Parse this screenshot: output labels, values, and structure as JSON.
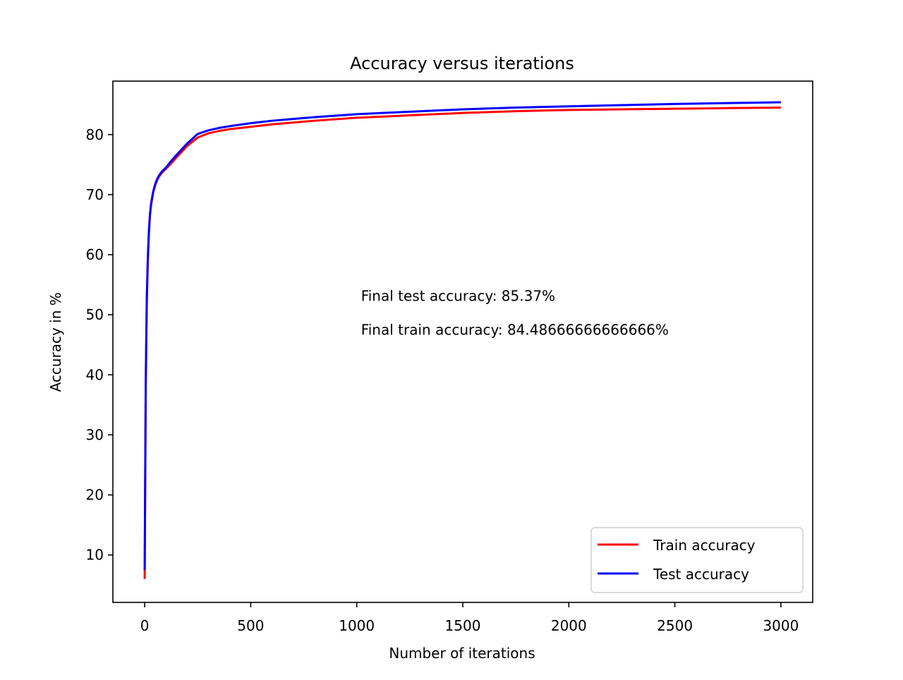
{
  "chart_data": {
    "type": "line",
    "title": "Accuracy versus iterations",
    "xlabel": "Number of iterations",
    "ylabel": "Accuracy in %",
    "xlim": [
      -150,
      3150
    ],
    "ylim": [
      2.1,
      88.9
    ],
    "x_ticks": [
      0,
      500,
      1000,
      1500,
      2000,
      2500,
      3000
    ],
    "y_ticks": [
      10,
      20,
      30,
      40,
      50,
      60,
      70,
      80
    ],
    "grid": false,
    "legend_position": "lower-right",
    "annotations": [
      {
        "text": "Final test accuracy: 85.37%",
        "x": 1020,
        "y": 52.3
      },
      {
        "text": "Final train accuracy: 84.48666666666666%",
        "x": 1020,
        "y": 46.7
      }
    ],
    "series": [
      {
        "name": "Train accuracy",
        "color": "#ff0000",
        "x": [
          0,
          5,
          10,
          15,
          20,
          25,
          30,
          40,
          50,
          60,
          70,
          80,
          100,
          125,
          150,
          200,
          250,
          300,
          350,
          400,
          500,
          600,
          700,
          800,
          1000,
          1250,
          1500,
          1750,
          2000,
          2250,
          2500,
          2750,
          3000
        ],
        "y": [
          6.0,
          38.0,
          52.0,
          59.0,
          63.5,
          66.5,
          68.2,
          70.3,
          71.6,
          72.5,
          73.1,
          73.6,
          74.3,
          75.2,
          76.2,
          78.1,
          79.5,
          80.2,
          80.6,
          80.9,
          81.3,
          81.7,
          82.0,
          82.3,
          82.8,
          83.2,
          83.6,
          83.9,
          84.1,
          84.2,
          84.3,
          84.4,
          84.49
        ]
      },
      {
        "name": "Test accuracy",
        "color": "#0000ff",
        "x": [
          0,
          5,
          10,
          15,
          20,
          25,
          30,
          40,
          50,
          60,
          70,
          80,
          100,
          125,
          150,
          200,
          250,
          300,
          350,
          400,
          500,
          600,
          700,
          800,
          1000,
          1250,
          1500,
          1750,
          2000,
          2250,
          2500,
          2750,
          3000
        ],
        "y": [
          7.5,
          39.0,
          53.0,
          59.8,
          64.0,
          66.8,
          68.5,
          70.5,
          71.8,
          72.7,
          73.3,
          73.8,
          74.5,
          75.6,
          76.6,
          78.5,
          80.1,
          80.7,
          81.1,
          81.4,
          81.9,
          82.3,
          82.6,
          82.9,
          83.4,
          83.8,
          84.2,
          84.5,
          84.7,
          84.9,
          85.1,
          85.25,
          85.37
        ]
      }
    ]
  }
}
